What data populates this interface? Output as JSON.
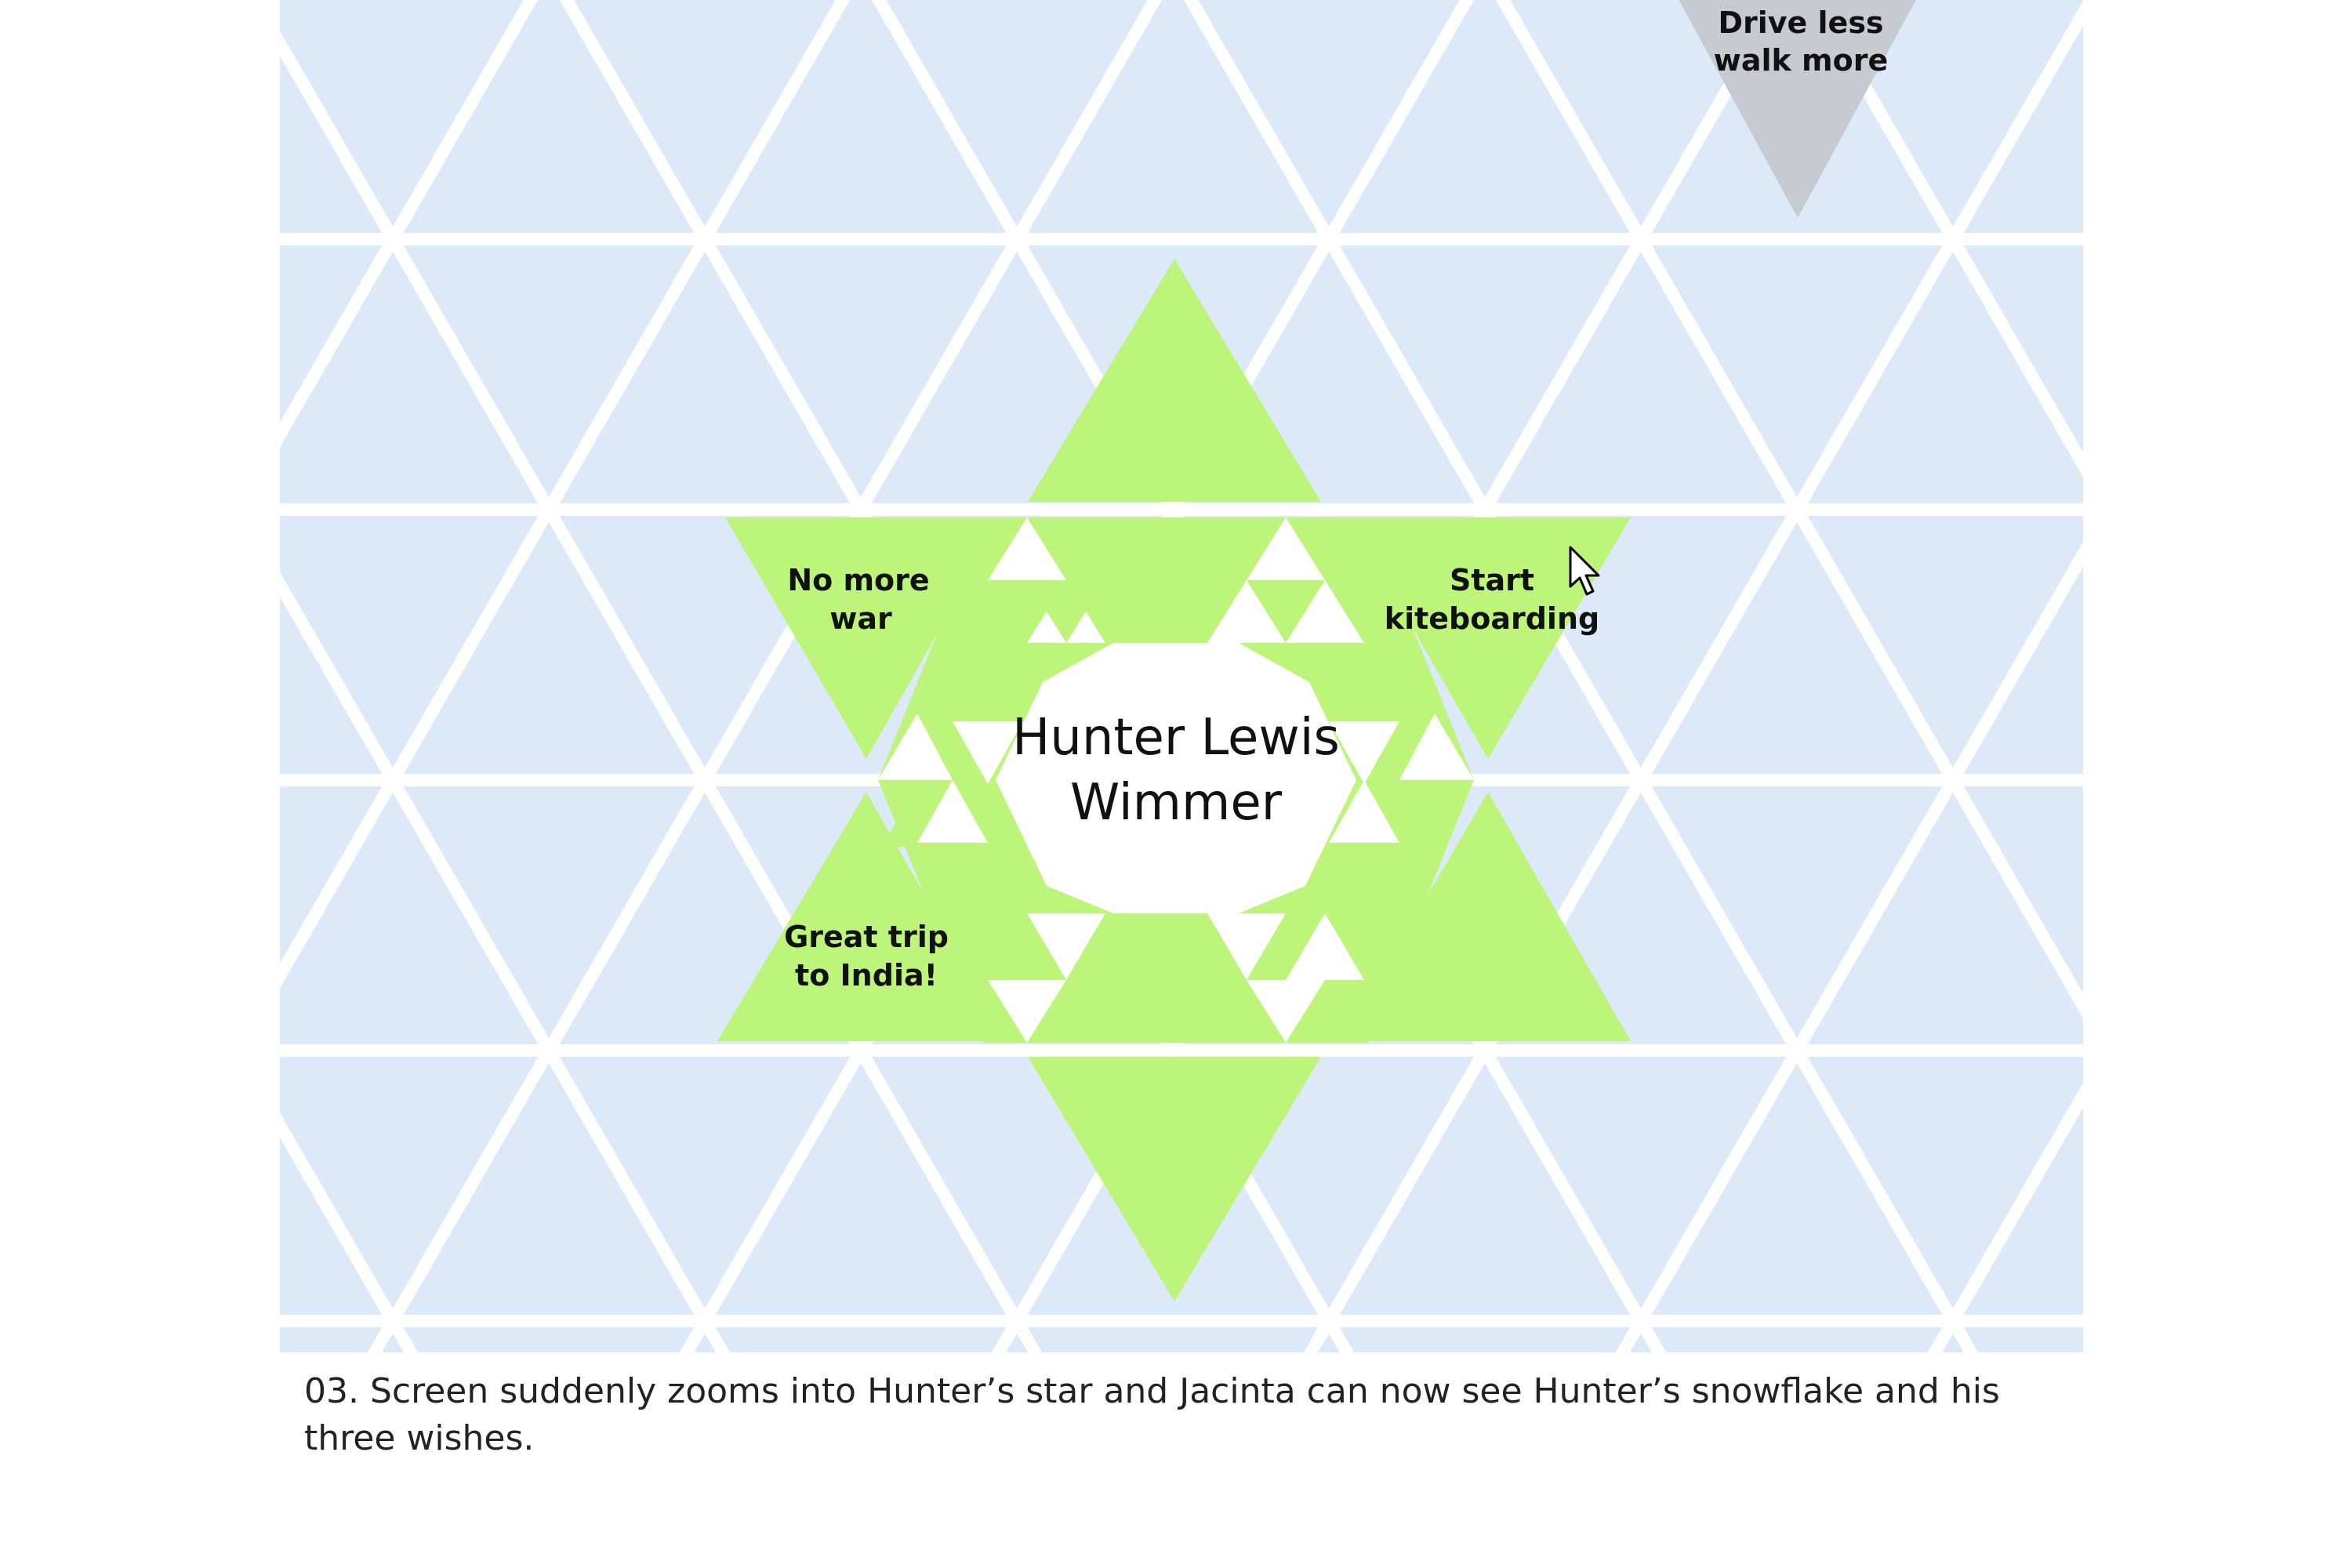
{
  "colors": {
    "background_tile": "#dbe9f8",
    "grid_lines": "#ffffff",
    "star_fill": "#bdf57b",
    "inactive_wish": "#c7cad1",
    "text": "#111111"
  },
  "star": {
    "name_line1": "Hunter Lewis",
    "name_line2": "Wimmer"
  },
  "wishes": [
    {
      "line1": "No more",
      "line2": "war"
    },
    {
      "line1": "Start",
      "line2": "kiteboarding"
    },
    {
      "line1": "Great trip",
      "line2": "to India!"
    }
  ],
  "other_wish": {
    "line1": "Drive less",
    "line2": "walk more"
  },
  "caption": "03. Screen suddenly zooms into Hunter’s star and Jacinta can now see Hunter’s snowflake and his three wishes.",
  "icons": {
    "cursor": "mouse-pointer-icon"
  }
}
